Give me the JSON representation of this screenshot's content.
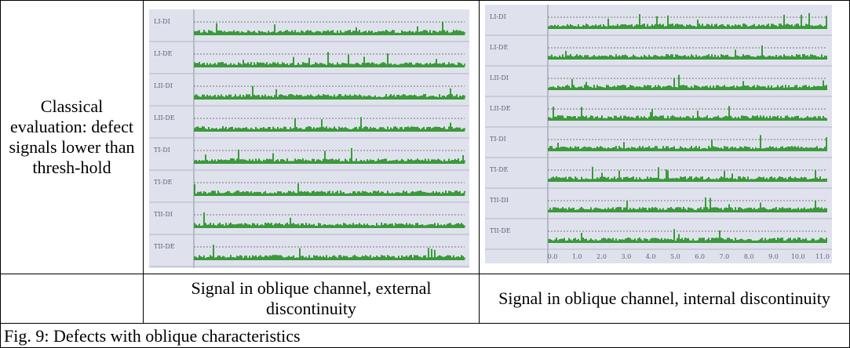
{
  "row_header": "Classical evaluation: defect signals lower than thresh-hold",
  "figures": [
    {
      "channels": [
        "LI-DI",
        "LI-DE",
        "LII-DI",
        "LII-DE",
        "TI-DI",
        "TI-DE",
        "TII-DI",
        "TII-DE"
      ]
    },
    {
      "channels": [
        "LI-DI",
        "LI-DE",
        "LII-DI",
        "LII-DE",
        "TI-DI",
        "TI-DE",
        "TII-DI",
        "TII-DE"
      ],
      "x_axis_labels": [
        "0.0",
        "1.0",
        "2.0",
        "3.0",
        "4.0",
        "5.0",
        "6.0",
        "7.0",
        "8.0",
        "9.0",
        "10.0",
        "11.0"
      ]
    }
  ],
  "captions": [
    "Signal in oblique channel, external discontinuity",
    "Signal in oblique channel, internal discontinuity"
  ],
  "figure_caption": "Fig. 9: Defects with oblique characteristics"
}
